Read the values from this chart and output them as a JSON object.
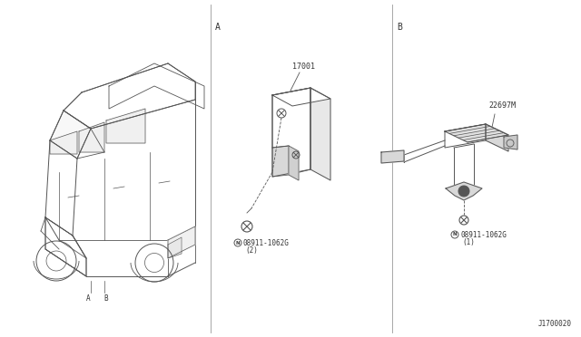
{
  "bg_color": "#ffffff",
  "line_color": "#555555",
  "text_color": "#333333",
  "fig_width": 6.4,
  "fig_height": 3.72,
  "dpi": 100,
  "diagram_id": "J1700020",
  "section_a_label": "A",
  "section_b_label": "B",
  "part_a_number": "17001",
  "part_a_bolt": "08911-1062G",
  "part_a_bolt_qty": "(2)",
  "part_b_number": "22697M",
  "part_b_bolt": "08911-1062G",
  "part_b_bolt_qty": "(1)",
  "divider_color": "#999999"
}
